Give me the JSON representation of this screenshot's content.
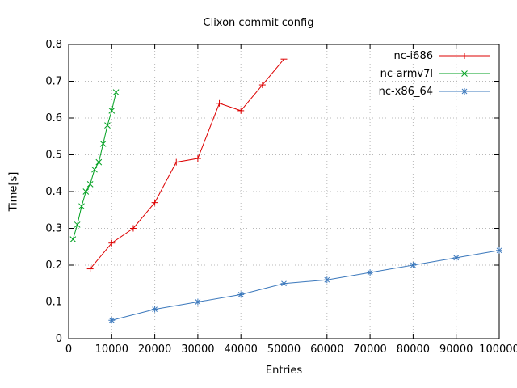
{
  "chart": {
    "title": "Clixon commit config",
    "xlabel": "Entries",
    "ylabel": "Time[s]"
  },
  "chart_data": {
    "type": "line",
    "title": "Clixon commit config",
    "xlabel": "Entries",
    "ylabel": "Time[s]",
    "xlim": [
      0,
      100000
    ],
    "ylim": [
      0,
      0.8
    ],
    "xticks": [
      0,
      10000,
      20000,
      30000,
      40000,
      50000,
      60000,
      70000,
      80000,
      90000,
      100000
    ],
    "yticks": [
      0,
      0.1,
      0.2,
      0.3,
      0.4,
      0.5,
      0.6,
      0.7,
      0.8
    ],
    "grid": true,
    "grid_style": "dotted",
    "legend_position": "top-right-inside",
    "colors": {
      "border": "#000000",
      "grid": "#b8b8b8",
      "background": "#ffffff"
    },
    "series": [
      {
        "name": "nc-i686",
        "color": "#dd0000",
        "marker": "plus",
        "x": [
          5000,
          10000,
          15000,
          20000,
          25000,
          30000,
          35000,
          40000,
          45000,
          50000
        ],
        "y": [
          0.19,
          0.26,
          0.3,
          0.37,
          0.48,
          0.49,
          0.64,
          0.62,
          0.69,
          0.76
        ]
      },
      {
        "name": "nc-armv7l",
        "color": "#00a020",
        "marker": "x",
        "x": [
          1000,
          2000,
          3000,
          4000,
          5000,
          6000,
          7000,
          8000,
          9000,
          10000,
          11000
        ],
        "y": [
          0.27,
          0.31,
          0.36,
          0.4,
          0.42,
          0.46,
          0.48,
          0.53,
          0.58,
          0.62,
          0.67
        ]
      },
      {
        "name": "nc-x86_64",
        "color": "#3b78bc",
        "marker": "asterisk",
        "x": [
          10000,
          20000,
          30000,
          40000,
          50000,
          60000,
          70000,
          80000,
          90000,
          100000
        ],
        "y": [
          0.05,
          0.08,
          0.1,
          0.12,
          0.15,
          0.16,
          0.18,
          0.2,
          0.22,
          0.24
        ]
      }
    ]
  }
}
